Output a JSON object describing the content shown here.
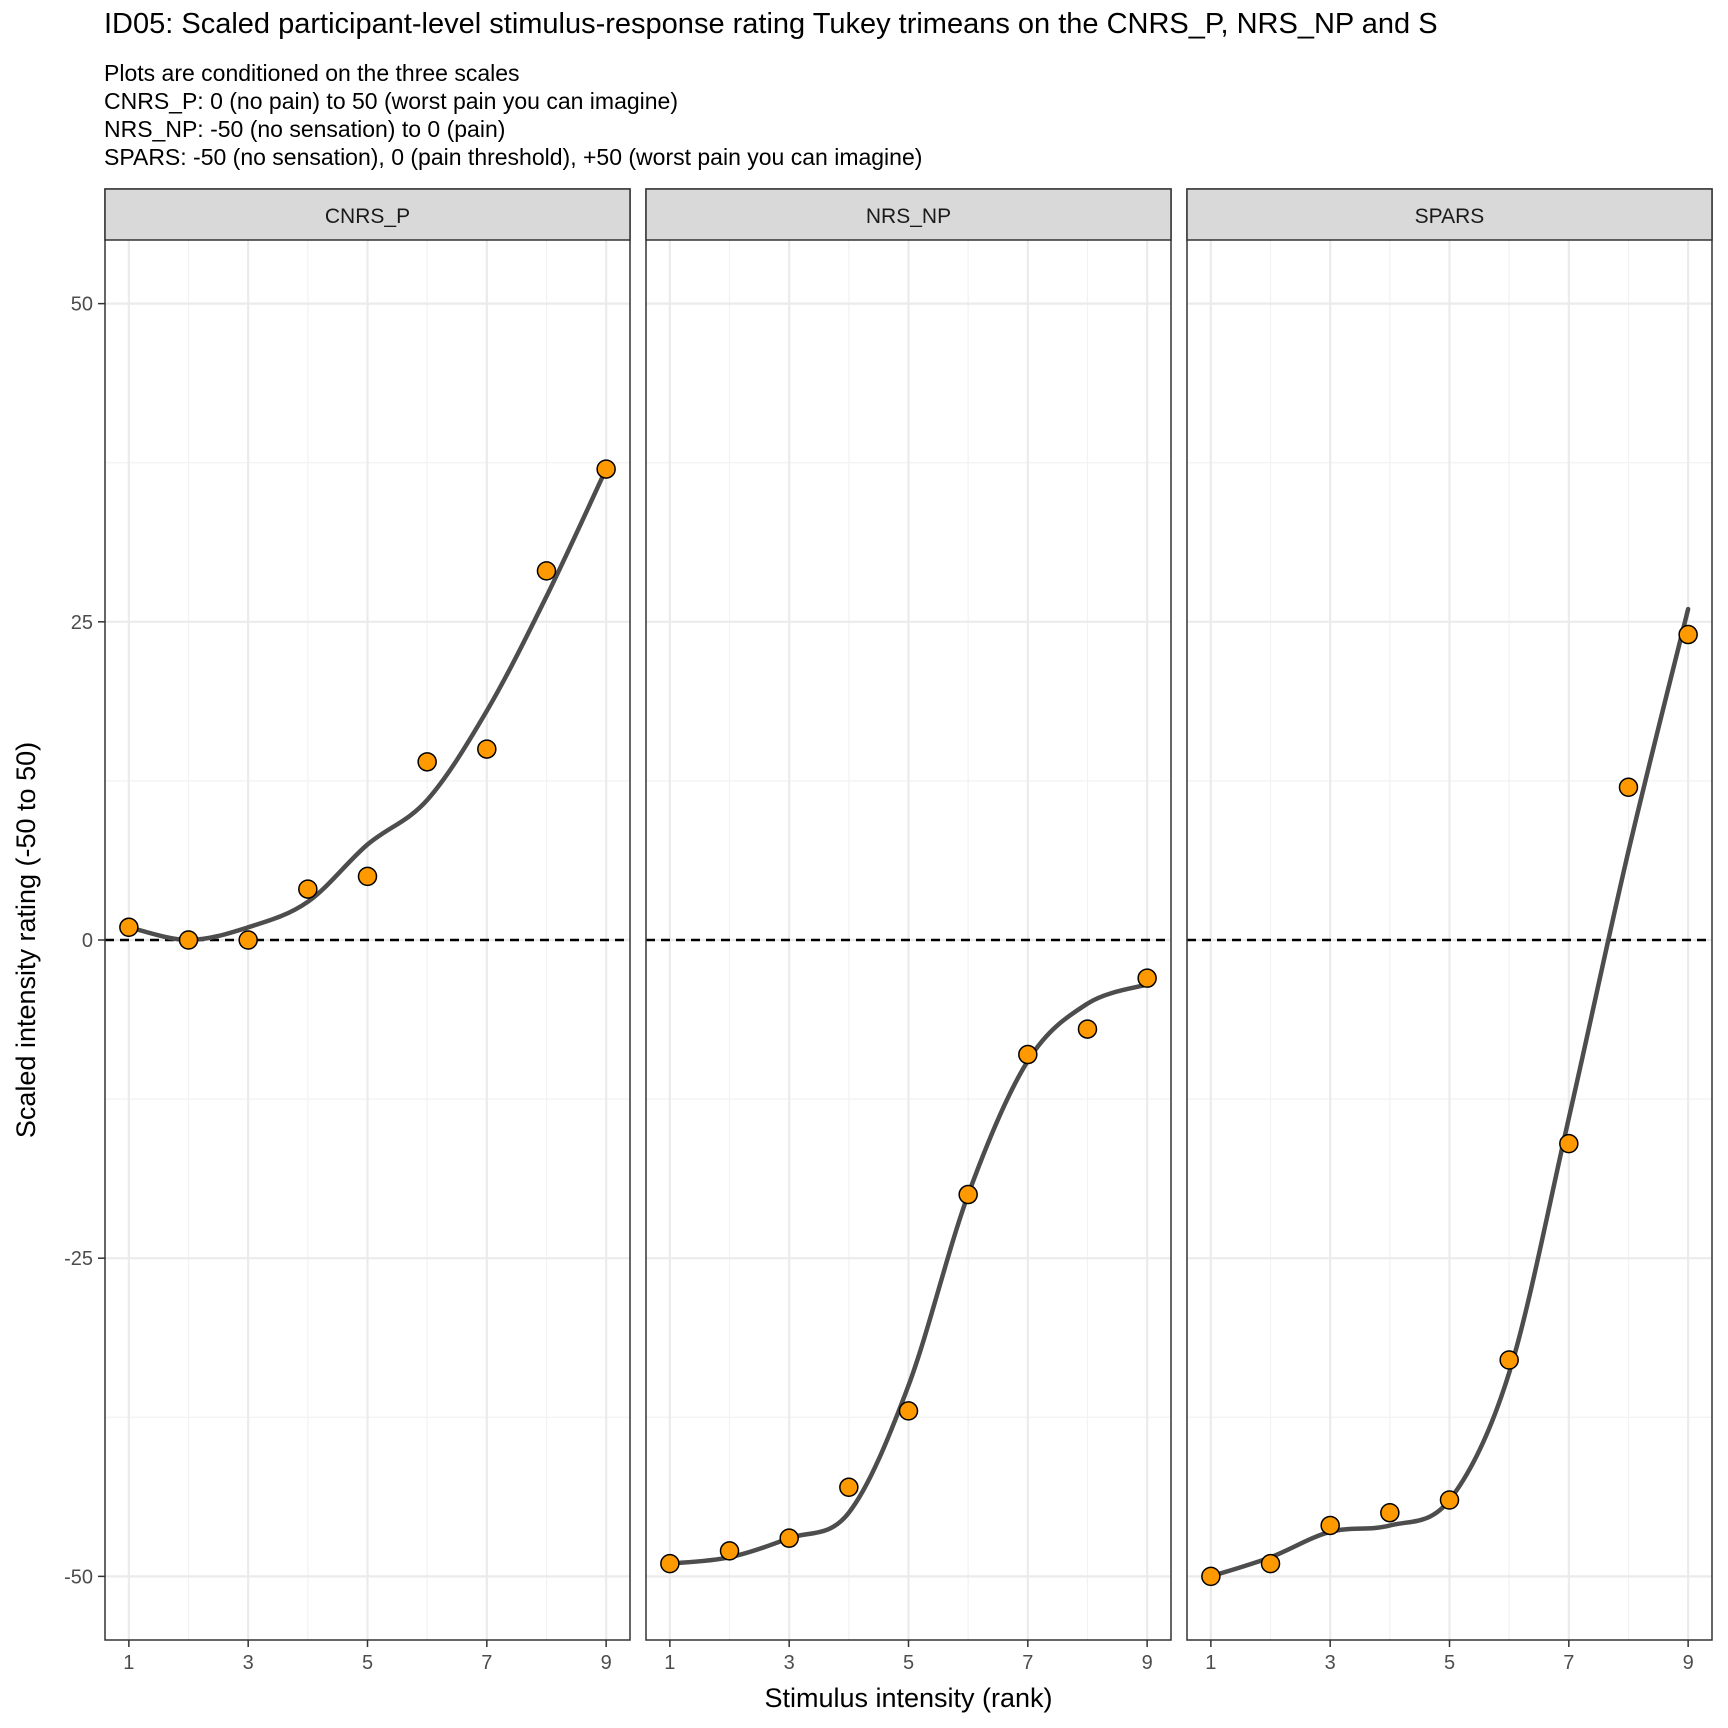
{
  "title": "ID05: Scaled participant-level stimulus-response rating Tukey trimeans on the CNRS_P, NRS_NP and S",
  "subtitle_lines": [
    "Plots are conditioned on the three scales",
    "CNRS_P: 0 (no pain) to 50 (worst pain you can imagine)",
    "NRS_NP: -50 (no sensation) to 0 (pain)",
    "SPARS: -50 (no sensation), 0 (pain threshold), +50 (worst pain you can imagine)"
  ],
  "colors": {
    "point_fill": "#FF9900",
    "point_stroke": "#000000",
    "smooth_line": "#4D4D4D",
    "strip_bg": "#D9D9D9",
    "grid_major": "#EBEBEB",
    "grid_minor": "#F2F2F2",
    "reference_line": "#000000"
  },
  "chart_data": {
    "type": "scatter",
    "facets": [
      "CNRS_P",
      "NRS_NP",
      "SPARS"
    ],
    "xlabel": "Stimulus intensity (rank)",
    "ylabel": "Scaled intensity rating (-50 to 50)",
    "x_ticks": [
      1,
      3,
      5,
      7,
      9
    ],
    "y_ticks": [
      -50,
      -25,
      0,
      25,
      50
    ],
    "xlim": [
      0.6,
      9.4
    ],
    "ylim": [
      -55,
      55
    ],
    "reference_line_y": 0,
    "x": [
      1,
      2,
      3,
      4,
      5,
      6,
      7,
      8,
      9
    ],
    "series": [
      {
        "name": "CNRS_P",
        "values": [
          1,
          0,
          0,
          4,
          5,
          14,
          15,
          29,
          37
        ],
        "smooth": [
          [
            1,
            1
          ],
          [
            2,
            0
          ],
          [
            3,
            1
          ],
          [
            4,
            3
          ],
          [
            5,
            7.5
          ],
          [
            6,
            11
          ],
          [
            7,
            18
          ],
          [
            8,
            27
          ],
          [
            9,
            37
          ]
        ]
      },
      {
        "name": "NRS_NP",
        "values": [
          -49,
          -48,
          -47,
          -43,
          -37,
          -20,
          -9,
          -7,
          -3
        ],
        "smooth": [
          [
            1,
            -49
          ],
          [
            2,
            -48.5
          ],
          [
            3,
            -47
          ],
          [
            4,
            -45
          ],
          [
            5,
            -35
          ],
          [
            6,
            -20
          ],
          [
            7,
            -9.5
          ],
          [
            8,
            -5
          ],
          [
            9,
            -3.5
          ]
        ]
      },
      {
        "name": "SPARS",
        "values": [
          -50,
          -49,
          -46,
          -45,
          -44,
          -33,
          -16,
          12,
          24
        ],
        "smooth": [
          [
            1,
            -50
          ],
          [
            2,
            -48.5
          ],
          [
            3,
            -46.5
          ],
          [
            4,
            -46
          ],
          [
            5,
            -44
          ],
          [
            6,
            -34
          ],
          [
            7,
            -14
          ],
          [
            8,
            7
          ],
          [
            9,
            26
          ]
        ]
      }
    ]
  }
}
